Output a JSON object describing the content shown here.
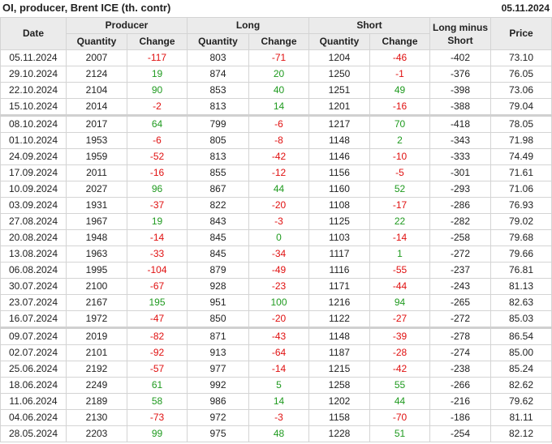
{
  "header": {
    "title": "OI, producer, Brent ICE (th. contr)",
    "date": "05.11.2024"
  },
  "columns": {
    "date": "Date",
    "producer": "Producer",
    "long": "Long",
    "short": "Short",
    "long_minus_short": "Long minus Short",
    "price": "Price",
    "quantity": "Quantity",
    "change": "Change"
  },
  "colors": {
    "positive": "#1f9a1f",
    "negative": "#e01010",
    "header_bg": "#ebebeb"
  },
  "rows": [
    [
      "05.11.2024",
      "2007",
      "-117",
      "803",
      "-71",
      "1204",
      "-46",
      "-402",
      "73.10"
    ],
    [
      "29.10.2024",
      "2124",
      "19",
      "874",
      "20",
      "1250",
      "-1",
      "-376",
      "76.05"
    ],
    [
      "22.10.2024",
      "2104",
      "90",
      "853",
      "40",
      "1251",
      "49",
      "-398",
      "73.06"
    ],
    [
      "15.10.2024",
      "2014",
      "-2",
      "813",
      "14",
      "1201",
      "-16",
      "-388",
      "79.04"
    ],
    [
      "08.10.2024",
      "2017",
      "64",
      "799",
      "-6",
      "1217",
      "70",
      "-418",
      "78.05"
    ],
    [
      "01.10.2024",
      "1953",
      "-6",
      "805",
      "-8",
      "1148",
      "2",
      "-343",
      "71.98"
    ],
    [
      "24.09.2024",
      "1959",
      "-52",
      "813",
      "-42",
      "1146",
      "-10",
      "-333",
      "74.49"
    ],
    [
      "17.09.2024",
      "2011",
      "-16",
      "855",
      "-12",
      "1156",
      "-5",
      "-301",
      "71.61"
    ],
    [
      "10.09.2024",
      "2027",
      "96",
      "867",
      "44",
      "1160",
      "52",
      "-293",
      "71.06"
    ],
    [
      "03.09.2024",
      "1931",
      "-37",
      "822",
      "-20",
      "1108",
      "-17",
      "-286",
      "76.93"
    ],
    [
      "27.08.2024",
      "1967",
      "19",
      "843",
      "-3",
      "1125",
      "22",
      "-282",
      "79.02"
    ],
    [
      "20.08.2024",
      "1948",
      "-14",
      "845",
      "0",
      "1103",
      "-14",
      "-258",
      "79.68"
    ],
    [
      "13.08.2024",
      "1963",
      "-33",
      "845",
      "-34",
      "1117",
      "1",
      "-272",
      "79.66"
    ],
    [
      "06.08.2024",
      "1995",
      "-104",
      "879",
      "-49",
      "1116",
      "-55",
      "-237",
      "76.81"
    ],
    [
      "30.07.2024",
      "2100",
      "-67",
      "928",
      "-23",
      "1171",
      "-44",
      "-243",
      "81.13"
    ],
    [
      "23.07.2024",
      "2167",
      "195",
      "951",
      "100",
      "1216",
      "94",
      "-265",
      "82.63"
    ],
    [
      "16.07.2024",
      "1972",
      "-47",
      "850",
      "-20",
      "1122",
      "-27",
      "-272",
      "85.03"
    ],
    [
      "09.07.2024",
      "2019",
      "-82",
      "871",
      "-43",
      "1148",
      "-39",
      "-278",
      "86.54"
    ],
    [
      "02.07.2024",
      "2101",
      "-92",
      "913",
      "-64",
      "1187",
      "-28",
      "-274",
      "85.00"
    ],
    [
      "25.06.2024",
      "2192",
      "-57",
      "977",
      "-14",
      "1215",
      "-42",
      "-238",
      "85.24"
    ],
    [
      "18.06.2024",
      "2249",
      "61",
      "992",
      "5",
      "1258",
      "55",
      "-266",
      "82.62"
    ],
    [
      "11.06.2024",
      "2189",
      "58",
      "986",
      "14",
      "1202",
      "44",
      "-216",
      "79.62"
    ],
    [
      "04.06.2024",
      "2130",
      "-73",
      "972",
      "-3",
      "1158",
      "-70",
      "-186",
      "81.11"
    ],
    [
      "28.05.2024",
      "2203",
      "99",
      "975",
      "48",
      "1228",
      "51",
      "-254",
      "82.12"
    ]
  ]
}
